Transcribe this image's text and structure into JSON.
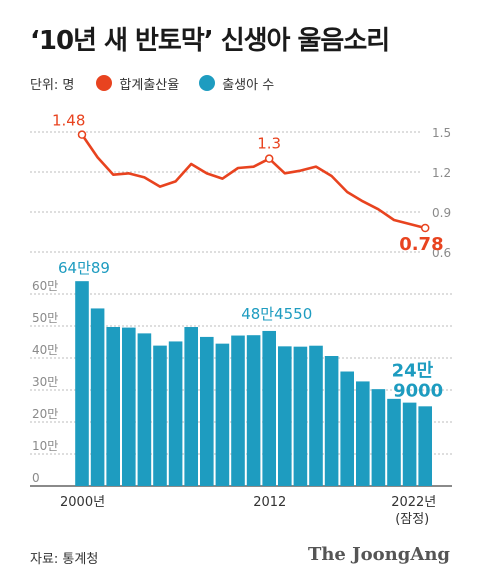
{
  "title": "‘10년 새 반토막’ 신생아 울음소리",
  "legend": {
    "unit": "단위: 명",
    "items": [
      {
        "label": "합계출산율",
        "color": "#e8431f"
      },
      {
        "label": "출생아 수",
        "color": "#1e9cc0"
      }
    ]
  },
  "source": "자료: 통계청",
  "brand": "The JoongAng",
  "colors": {
    "line": "#e8431f",
    "bar": "#1e9cc0",
    "grid": "#bdbdbd",
    "axis": "#8a8a8a",
    "value_bar": "#1e9cc0"
  },
  "chart_data": [
    {
      "type": "line",
      "series_name": "합계출산율",
      "x": [
        2000,
        2001,
        2002,
        2003,
        2004,
        2005,
        2006,
        2007,
        2008,
        2009,
        2010,
        2011,
        2012,
        2013,
        2014,
        2015,
        2016,
        2017,
        2018,
        2019,
        2020,
        2021,
        2022
      ],
      "values": [
        1.48,
        1.31,
        1.18,
        1.19,
        1.16,
        1.09,
        1.13,
        1.26,
        1.19,
        1.15,
        1.23,
        1.24,
        1.3,
        1.19,
        1.21,
        1.24,
        1.17,
        1.05,
        0.98,
        0.92,
        0.84,
        0.81,
        0.78
      ],
      "yticks": [
        "1.5",
        "1.2",
        "0.9",
        "0.6"
      ],
      "ylim": [
        0.6,
        1.5
      ],
      "annotations": [
        {
          "index": 0,
          "text": "1.48"
        },
        {
          "index": 12,
          "text": "1.3"
        },
        {
          "index": 22,
          "text": "0.78"
        }
      ]
    },
    {
      "type": "bar",
      "series_name": "출생아 수",
      "x": [
        2000,
        2001,
        2002,
        2003,
        2004,
        2005,
        2006,
        2007,
        2008,
        2009,
        2010,
        2011,
        2012,
        2013,
        2014,
        2015,
        2016,
        2017,
        2018,
        2019,
        2020,
        2021,
        2022
      ],
      "values": [
        640089,
        554895,
        496911,
        495036,
        476958,
        438707,
        451759,
        496822,
        465892,
        444849,
        470171,
        471265,
        484550,
        436455,
        435435,
        438420,
        406243,
        357771,
        326822,
        302676,
        272337,
        260562,
        249000
      ],
      "ylim": [
        0,
        650000
      ],
      "yticks": [
        "60만",
        "50만",
        "40만",
        "30만",
        "20만",
        "10만",
        "0"
      ],
      "xtick_labels": [
        "2000년",
        "2012",
        "2022년",
        "(잠정)"
      ],
      "annotations": [
        {
          "index": 0,
          "text": "64만89"
        },
        {
          "index": 12,
          "text": "48만4550"
        },
        {
          "index": 22,
          "line1": "24만",
          "line2": "9000"
        }
      ]
    }
  ]
}
